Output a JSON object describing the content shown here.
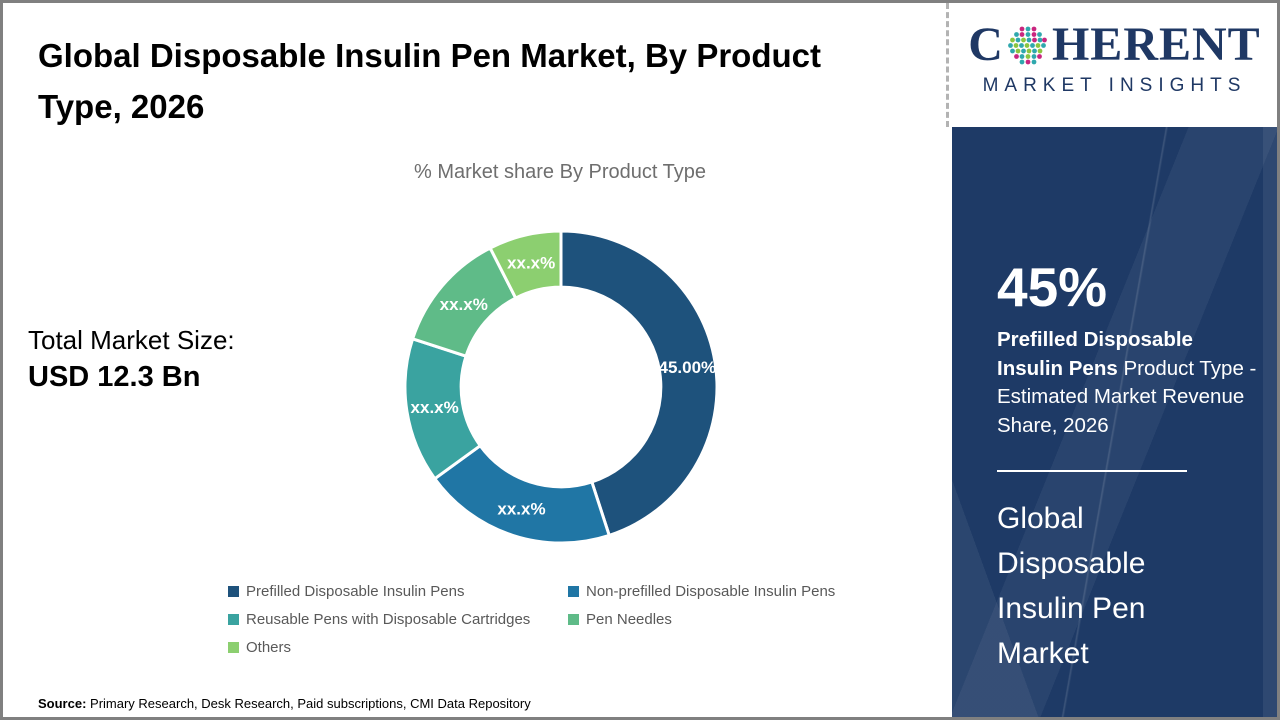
{
  "page": {
    "border_color": "#808080",
    "background": "#ffffff"
  },
  "header": {
    "title": "Global Disposable Insulin Pen Market, By Product Type, 2026"
  },
  "chart_data": {
    "type": "pie",
    "donut": true,
    "title": "% Market share By Product Type",
    "direction": "clockwise",
    "start_angle_deg": 0,
    "inner_radius_ratio": 0.64,
    "label_color": "#ffffff",
    "legend_position": "bottom",
    "segments": [
      {
        "label": "Prefilled Disposable Insulin Pens",
        "value": 45.0,
        "value_label": "45.00%",
        "color": "#1E527C"
      },
      {
        "label": "Non-prefilled Disposable Insulin Pens",
        "value": 20.0,
        "value_label": "xx.x%",
        "color": "#2076A5"
      },
      {
        "label": "Reusable Pens with Disposable Cartridges",
        "value": 15.0,
        "value_label": "xx.x%",
        "color": "#3AA3A0"
      },
      {
        "label": "Pen Needles",
        "value": 12.5,
        "value_label": "xx.x%",
        "color": "#5FBB88"
      },
      {
        "label": "Others",
        "value": 7.5,
        "value_label": "xx.x%",
        "color": "#8CCF70"
      }
    ]
  },
  "total_market": {
    "label": "Total Market Size:",
    "value": "USD 12.3 Bn"
  },
  "source": {
    "label": "Source:",
    "text": " Primary Research, Desk Research, Paid subscriptions, CMI Data Repository"
  },
  "logo": {
    "word_start": "C",
    "word_end": "HERENT",
    "tagline": "MARKET INSIGHTS",
    "navy": "#1F3864",
    "dot_colors": [
      "#2FA8AD",
      "#8BC540",
      "#C9267F"
    ]
  },
  "sidebar": {
    "background": "#1E3A66",
    "stat_value": "45%",
    "stat_bold": "Prefilled Disposable Insulin Pens",
    "stat_rest": " Product Type - Estimated Market Revenue Share, 2026",
    "market_name": "Global Disposable Insulin Pen Market"
  }
}
